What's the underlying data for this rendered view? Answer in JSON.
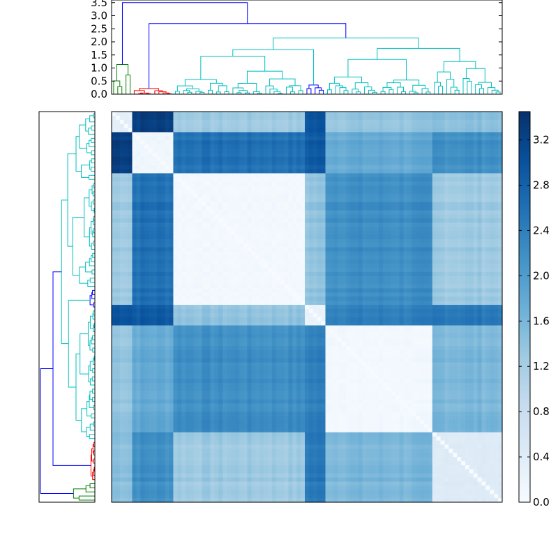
{
  "chart_data": {
    "type": "heatmap",
    "title": "",
    "description_values": "Clustered distance matrix with dendrograms on top and left; blocks of near-zero (light) distance along diagonal",
    "cluster_order": [
      "green",
      "red",
      "cyan-A",
      "blue-mid",
      "cyan-B",
      "cyan-C"
    ],
    "block_sizes": [
      5,
      10,
      32,
      5,
      26,
      17
    ],
    "block_distance_matrix": [
      [
        0.3,
        3.3,
        1.3,
        3.0,
        1.4,
        1.5
      ],
      [
        3.3,
        0.1,
        2.6,
        2.9,
        1.8,
        2.2
      ],
      [
        1.3,
        2.6,
        0.05,
        1.4,
        2.2,
        1.3
      ],
      [
        3.0,
        2.9,
        1.4,
        0.2,
        2.4,
        2.5
      ],
      [
        1.4,
        1.8,
        2.2,
        2.4,
        0.05,
        1.6
      ],
      [
        1.5,
        2.2,
        1.3,
        2.5,
        1.6,
        0.4
      ]
    ],
    "dendrogram": {
      "y_ticks": [
        "0.0",
        "0.5",
        "1.0",
        "1.5",
        "2.0",
        "2.5",
        "3.0",
        "3.5"
      ],
      "ylim": [
        0,
        3.6
      ],
      "colors": {
        "green": "#008000",
        "red": "#ff0000",
        "cyan": "#00bfbf",
        "blue": "#0000ff"
      }
    },
    "colorbar": {
      "ticks": [
        "0.0",
        "0.4",
        "0.8",
        "1.2",
        "1.6",
        "2.0",
        "2.4",
        "2.8",
        "3.2"
      ],
      "range": [
        0,
        3.45
      ],
      "colormap": "Blues"
    }
  }
}
